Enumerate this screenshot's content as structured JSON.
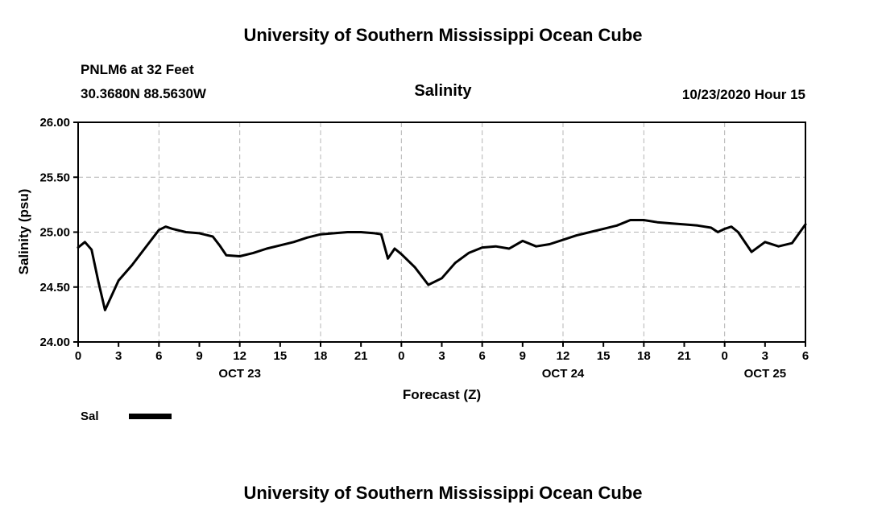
{
  "header": {
    "title_top": "University of Southern Mississippi Ocean Cube",
    "station_line1": "PNLM6 at 32 Feet",
    "station_line2": "30.3680N 88.5630W",
    "plot_title": "Salinity",
    "datetime_label": "10/23/2020 Hour 15"
  },
  "footer": {
    "title_bottom": "University of Southern Mississippi Ocean Cube"
  },
  "legend": {
    "label": "Sal",
    "swatch_color": "#000000"
  },
  "chart_data": {
    "type": "line",
    "title": "Salinity",
    "xlabel": "Forecast (Z)",
    "ylabel": "Salinity (psu)",
    "xlim": [
      0,
      54
    ],
    "ylim": [
      24.0,
      26.0
    ],
    "grid": true,
    "line_color": "#000000",
    "grid_color": "#b4b4b4",
    "y_ticks": [
      {
        "value": 26.0,
        "label": "26.00"
      },
      {
        "value": 25.5,
        "label": "25.50"
      },
      {
        "value": 25.0,
        "label": "25.00"
      },
      {
        "value": 24.5,
        "label": "24.50"
      },
      {
        "value": 24.0,
        "label": "24.00"
      }
    ],
    "x_ticks": [
      {
        "hour": 0,
        "label": "0"
      },
      {
        "hour": 3,
        "label": "3"
      },
      {
        "hour": 6,
        "label": "6"
      },
      {
        "hour": 9,
        "label": "9"
      },
      {
        "hour": 12,
        "label": "12"
      },
      {
        "hour": 15,
        "label": "15"
      },
      {
        "hour": 18,
        "label": "18"
      },
      {
        "hour": 21,
        "label": "21"
      },
      {
        "hour": 24,
        "label": "0"
      },
      {
        "hour": 27,
        "label": "3"
      },
      {
        "hour": 30,
        "label": "6"
      },
      {
        "hour": 33,
        "label": "9"
      },
      {
        "hour": 36,
        "label": "12"
      },
      {
        "hour": 39,
        "label": "15"
      },
      {
        "hour": 42,
        "label": "18"
      },
      {
        "hour": 45,
        "label": "21"
      },
      {
        "hour": 48,
        "label": "0"
      },
      {
        "hour": 51,
        "label": "3"
      },
      {
        "hour": 54,
        "label": "6"
      }
    ],
    "x_grid_hours": [
      6,
      12,
      18,
      24,
      30,
      36,
      42,
      48
    ],
    "y_grid_values": [
      24.5,
      25.0,
      25.5
    ],
    "date_labels": [
      {
        "hour": 12,
        "label": "OCT 23"
      },
      {
        "hour": 36,
        "label": "OCT 24"
      },
      {
        "hour": 51,
        "label": "OCT 25"
      }
    ],
    "series": [
      {
        "name": "Sal",
        "color": "#000000",
        "points": [
          [
            0,
            24.86
          ],
          [
            0.5,
            24.91
          ],
          [
            1,
            24.84
          ],
          [
            1.5,
            24.55
          ],
          [
            2,
            24.29
          ],
          [
            3,
            24.56
          ],
          [
            4,
            24.7
          ],
          [
            5,
            24.86
          ],
          [
            6,
            25.02
          ],
          [
            6.5,
            25.05
          ],
          [
            7,
            25.03
          ],
          [
            8,
            25.0
          ],
          [
            9,
            24.99
          ],
          [
            10,
            24.96
          ],
          [
            10.5,
            24.88
          ],
          [
            11,
            24.79
          ],
          [
            12,
            24.78
          ],
          [
            13,
            24.81
          ],
          [
            14,
            24.85
          ],
          [
            15,
            24.88
          ],
          [
            16,
            24.91
          ],
          [
            17,
            24.95
          ],
          [
            18,
            24.98
          ],
          [
            19,
            24.99
          ],
          [
            20,
            25.0
          ],
          [
            21,
            25.0
          ],
          [
            22,
            24.99
          ],
          [
            22.5,
            24.98
          ],
          [
            23,
            24.76
          ],
          [
            23.5,
            24.85
          ],
          [
            24,
            24.8
          ],
          [
            25,
            24.68
          ],
          [
            26,
            24.52
          ],
          [
            27,
            24.58
          ],
          [
            28,
            24.72
          ],
          [
            29,
            24.81
          ],
          [
            30,
            24.86
          ],
          [
            31,
            24.87
          ],
          [
            32,
            24.85
          ],
          [
            33,
            24.92
          ],
          [
            34,
            24.87
          ],
          [
            35,
            24.89
          ],
          [
            36,
            24.93
          ],
          [
            37,
            24.97
          ],
          [
            38,
            25.0
          ],
          [
            39,
            25.03
          ],
          [
            40,
            25.06
          ],
          [
            41,
            25.11
          ],
          [
            42,
            25.11
          ],
          [
            43,
            25.09
          ],
          [
            44,
            25.08
          ],
          [
            45,
            25.07
          ],
          [
            46,
            25.06
          ],
          [
            47,
            25.04
          ],
          [
            47.5,
            25.0
          ],
          [
            48,
            25.03
          ],
          [
            48.5,
            25.05
          ],
          [
            49,
            25.0
          ],
          [
            50,
            24.82
          ],
          [
            51,
            24.91
          ],
          [
            52,
            24.87
          ],
          [
            53,
            24.9
          ],
          [
            54,
            25.07
          ]
        ]
      }
    ]
  }
}
